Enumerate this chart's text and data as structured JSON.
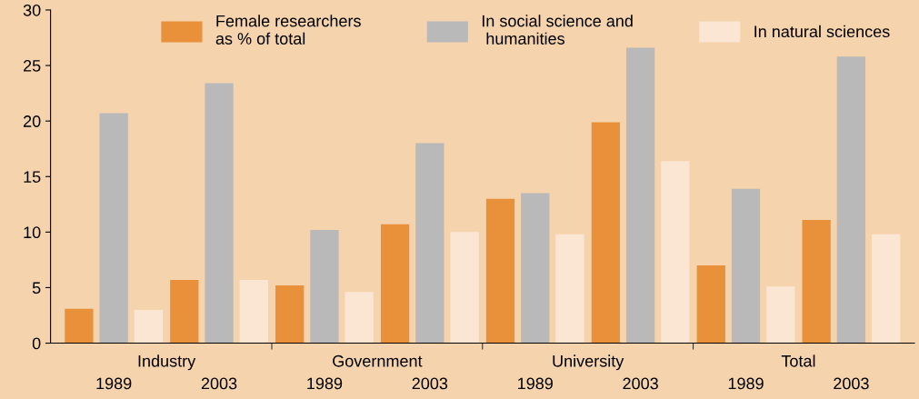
{
  "chart_data": {
    "type": "bar",
    "categories": [
      "1989",
      "2003",
      "1989",
      "2003",
      "1989",
      "2003",
      "1989",
      "2003"
    ],
    "series": [
      {
        "name": "Female researchers\nas % of total",
        "color": "#e8913a",
        "values": [
          3.1,
          5.7,
          5.2,
          10.7,
          13.0,
          19.9,
          7.0,
          11.1
        ]
      },
      {
        "name": "In social science and\n humanities",
        "color": "#b9b9b9",
        "values": [
          20.7,
          23.4,
          10.2,
          18.0,
          13.5,
          26.6,
          13.9,
          25.8
        ]
      },
      {
        "name": "In natural sciences",
        "color": "#fbe6d3",
        "values": [
          3.0,
          5.7,
          4.6,
          10.0,
          9.8,
          16.4,
          5.1,
          9.8
        ]
      }
    ],
    "annotations": [
      "Industry",
      "Government",
      "University",
      "Total"
    ],
    "ylim": [
      0,
      30
    ],
    "yticks": [
      0,
      5,
      10,
      15,
      20,
      25,
      30
    ],
    "grid": false,
    "legend": "top"
  }
}
